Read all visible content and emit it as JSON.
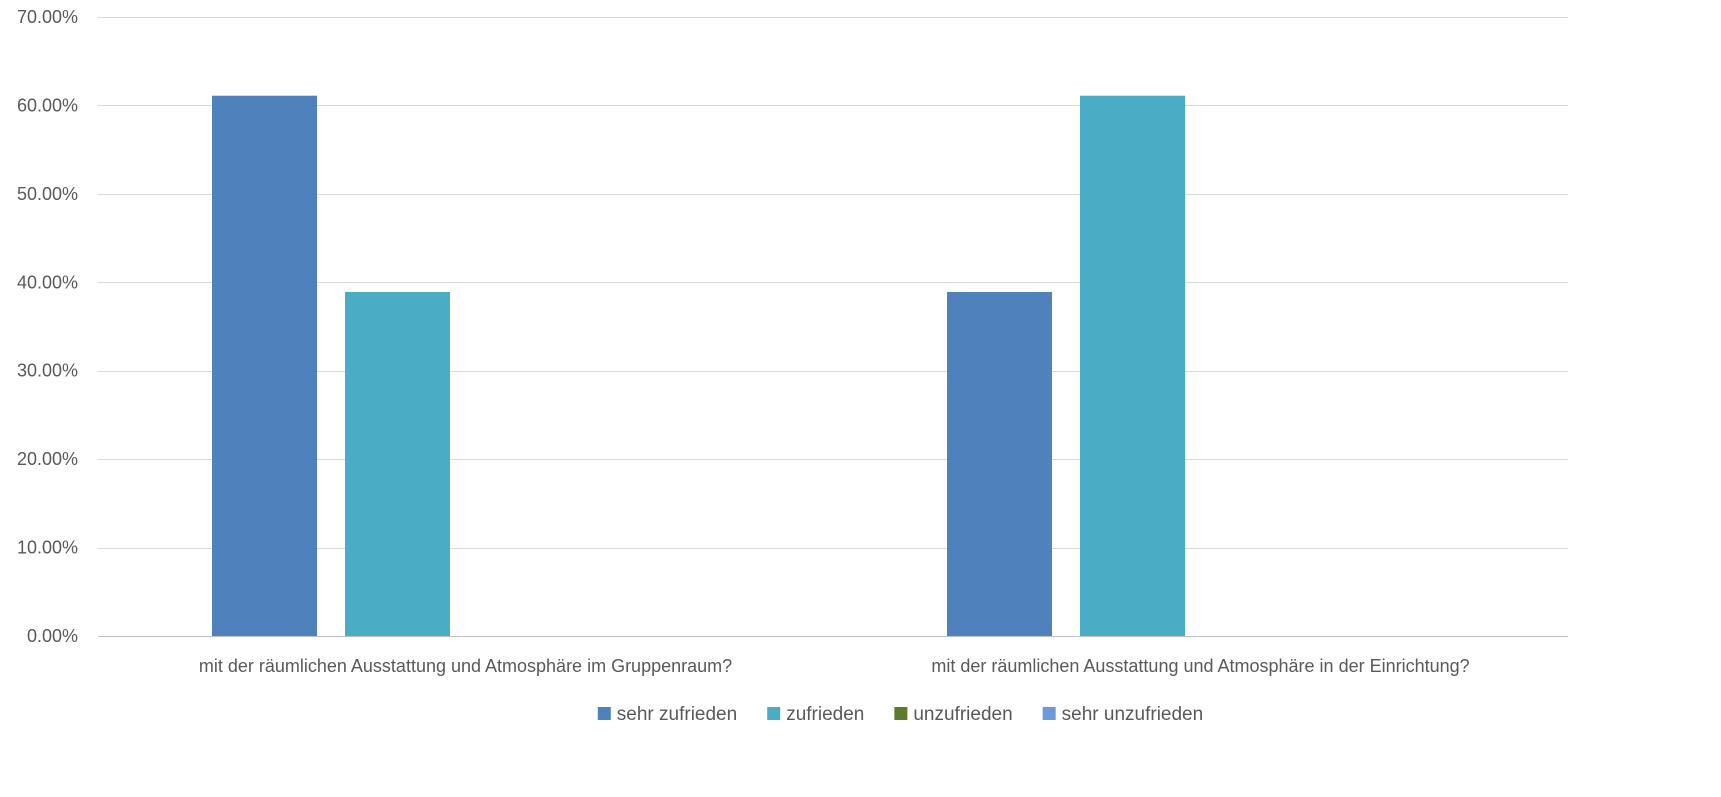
{
  "chart_data": {
    "type": "bar",
    "title": "",
    "xlabel": "",
    "ylabel": "",
    "ylim": [
      0,
      0.7
    ],
    "ytick_values": [
      0,
      0.1,
      0.2,
      0.3,
      0.4,
      0.5,
      0.6,
      0.7
    ],
    "ytick_labels": [
      "0.00%",
      "10.00%",
      "20.00%",
      "30.00%",
      "40.00%",
      "50.00%",
      "60.00%",
      "70.00%"
    ],
    "grid": true,
    "legend_position": "bottom",
    "categories": [
      "mit der räumlichen Ausstattung und Atmosphäre im Gruppenraum?",
      "mit der räumlichen Ausstattung und Atmosphäre in der Einrichtung?"
    ],
    "series": [
      {
        "name": "sehr zufrieden",
        "color": "#4F81BD",
        "values": [
          0.611,
          0.389
        ]
      },
      {
        "name": "zufrieden",
        "color": "#4BACC6",
        "values": [
          0.389,
          0.611
        ]
      },
      {
        "name": "unzufrieden",
        "color": "#5B7B2E",
        "values": [
          0,
          0
        ]
      },
      {
        "name": "sehr unzufrieden",
        "color": "#6A9BD8",
        "values": [
          0,
          0
        ]
      }
    ]
  }
}
